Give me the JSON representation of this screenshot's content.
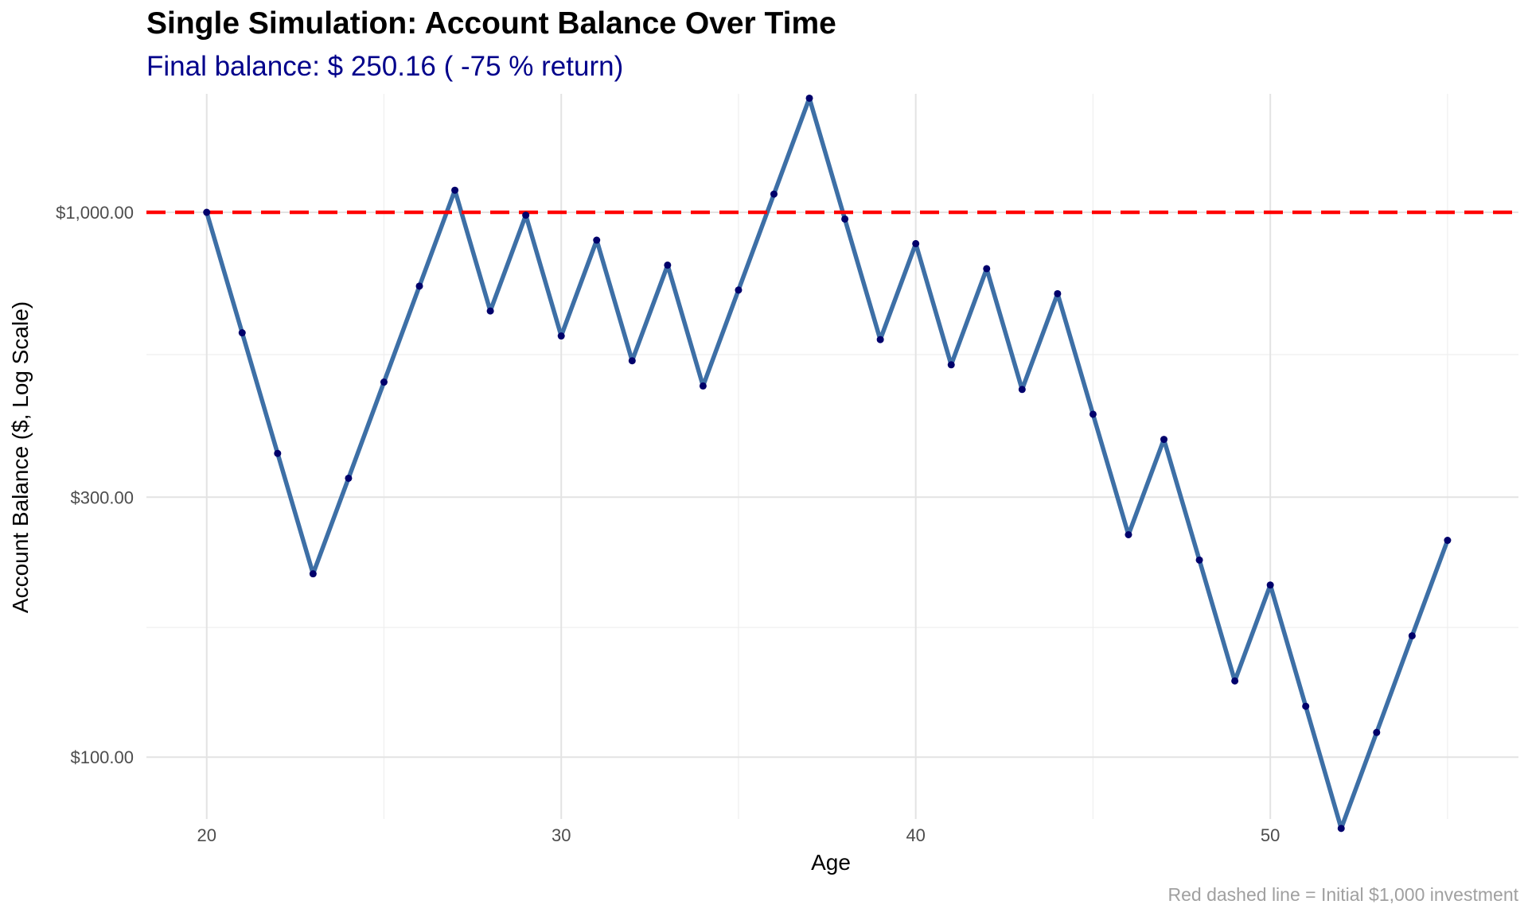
{
  "chart_data": {
    "type": "line",
    "title": "Single Simulation: Account Balance Over Time",
    "subtitle": "Final balance: $ 250.16  ( -75 % return)",
    "caption": "Red dashed line = Initial $1,000 investment",
    "xlabel": "Age",
    "ylabel": "Account Balance ($, Log Scale)",
    "y_scale": "log10",
    "xlim": [
      18.3,
      57.0
    ],
    "ylim": [
      77,
      1650
    ],
    "x_ticks": [
      20,
      30,
      40,
      50
    ],
    "x_tick_labels": [
      "20",
      "30",
      "40",
      "50"
    ],
    "y_ticks": [
      100,
      300,
      1000
    ],
    "y_tick_labels": [
      "$100.00",
      "$300.00",
      "$1,000.00"
    ],
    "y_minor_gridlines": [
      173,
      548
    ],
    "grid": true,
    "reference_line": {
      "y": 1000,
      "style": "dashed",
      "color": "#ff0000"
    },
    "series": [
      {
        "color": "#3d6fa6",
        "point_color": "#00006b",
        "x": [
          20,
          21,
          22,
          23,
          24,
          25,
          26,
          27,
          28,
          29,
          30,
          31,
          32,
          33,
          34,
          35,
          36,
          37,
          38,
          39,
          40,
          41,
          42,
          43,
          44,
          45,
          46,
          47,
          48,
          49,
          50,
          51,
          52,
          53,
          54,
          55
        ],
        "values": [
          1000,
          601,
          361,
          217,
          325,
          488,
          732,
          1098,
          659,
          988,
          593,
          889,
          534,
          800,
          480,
          720,
          1080,
          1620,
          972,
          584,
          876,
          525,
          788,
          473,
          709,
          426,
          256,
          383,
          230,
          138,
          207,
          124,
          74,
          111,
          167,
          250
        ]
      }
    ]
  }
}
